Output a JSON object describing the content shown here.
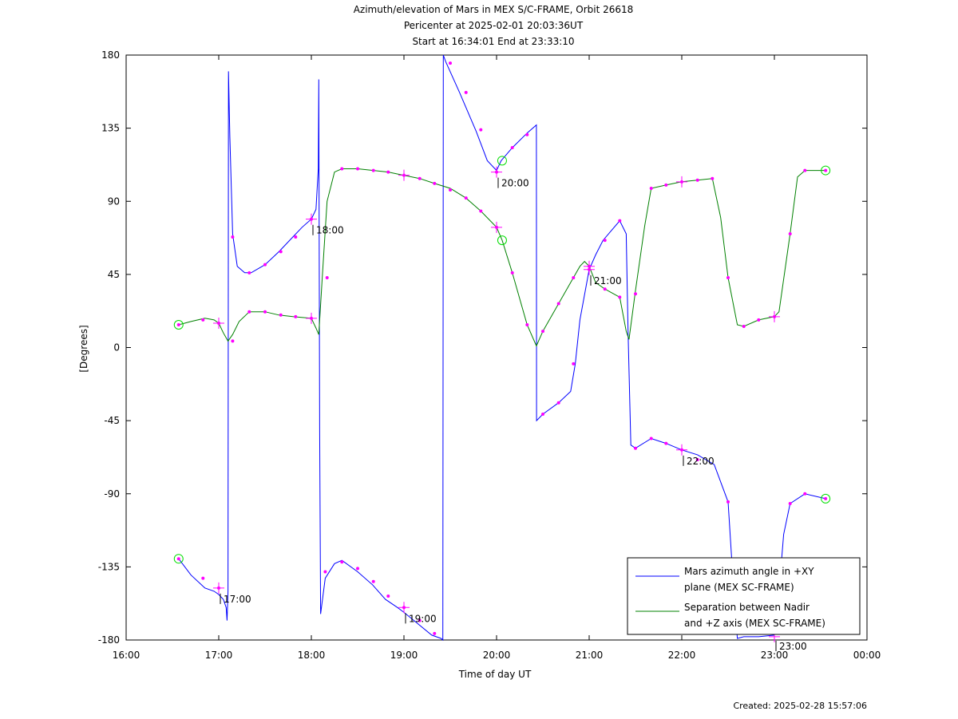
{
  "chart_data": {
    "type": "line",
    "title": "Azimuth/elevation of Mars in MEX S/C-FRAME,  Orbit 26618",
    "subtitle_lines": [
      "Pericenter at 2025-02-01 20:03:36UT",
      "Start at 16:34:01 End at 23:33:10"
    ],
    "xlabel": "Time of day UT",
    "ylabel": "[Degrees]",
    "xlim": [
      16,
      24
    ],
    "ylim": [
      -180,
      180
    ],
    "x_ticks": [
      16,
      17,
      18,
      19,
      20,
      21,
      22,
      23,
      24
    ],
    "x_tick_labels": [
      "16:00",
      "17:00",
      "18:00",
      "19:00",
      "20:00",
      "21:00",
      "22:00",
      "23:00",
      "00:00"
    ],
    "y_ticks": [
      180,
      135,
      90,
      45,
      0,
      -45,
      -90,
      -135,
      -180
    ],
    "y_tick_labels": [
      "180",
      "135",
      "90",
      "45",
      "0",
      "-45",
      "-90",
      "-135",
      "-180"
    ],
    "grid": false,
    "legend_position": "bottom-right",
    "series": [
      {
        "name": "Mars azimuth angle in +XY plane (MEX SC-FRAME)",
        "legend_lines": [
          "Mars azimuth angle in +XY",
          "plane (MEX SC-FRAME)"
        ],
        "color": "#0000ff",
        "x": [
          16.567,
          16.7,
          16.85,
          16.95,
          17.0,
          17.05,
          17.08,
          17.09,
          17.1,
          17.105,
          17.12,
          17.15,
          17.2,
          17.28,
          17.35,
          17.5,
          17.65,
          17.8,
          17.9,
          18.0,
          18.05,
          18.075,
          18.08,
          18.09,
          18.1,
          18.15,
          18.25,
          18.33,
          18.5,
          18.66,
          18.8,
          18.93,
          19.0,
          19.15,
          19.3,
          19.4,
          19.42,
          19.425,
          19.45,
          19.6,
          19.78,
          19.9,
          20.0,
          20.05,
          20.17,
          20.33,
          20.43,
          20.432,
          20.5,
          20.67,
          20.8,
          20.85,
          20.9,
          21.0,
          21.07,
          21.15,
          21.33,
          21.4,
          21.42,
          21.45,
          21.5,
          21.67,
          21.83,
          22.0,
          22.17,
          22.35,
          22.5,
          22.55,
          22.6,
          22.67,
          22.83,
          23.0,
          23.05,
          23.1,
          23.17,
          23.33,
          23.553
        ],
        "y": [
          -130,
          -140,
          -148,
          -150,
          -152,
          -155,
          -160,
          -168,
          -150,
          170,
          130,
          70,
          50,
          46,
          46,
          51,
          59,
          68,
          74,
          79,
          85,
          110,
          165,
          -50,
          -164,
          -142,
          -133,
          -131,
          -138,
          -146,
          -155,
          -160,
          -163,
          -170,
          -177,
          -179,
          -180,
          180,
          176,
          157,
          133,
          115,
          109,
          115,
          123,
          132,
          137,
          -45,
          -41,
          -34,
          -27,
          -10,
          17,
          48,
          57,
          66,
          78,
          70,
          10,
          -60,
          -62,
          -56,
          -59,
          -63,
          -66,
          -72,
          -95,
          -140,
          -179,
          -178,
          -178,
          -177,
          -150,
          -115,
          -96,
          -90,
          -93
        ]
      },
      {
        "name": "Separation between Nadir and +Z axis (MEX SC-FRAME)",
        "legend_lines": [
          "Separation between Nadir",
          "and +Z axis (MEX SC-FRAME)"
        ],
        "color": "#008000",
        "x": [
          16.567,
          16.7,
          16.85,
          16.95,
          17.0,
          17.05,
          17.1,
          17.15,
          17.22,
          17.33,
          17.5,
          17.65,
          17.8,
          18.0,
          18.05,
          18.08,
          18.12,
          18.17,
          18.25,
          18.33,
          18.5,
          18.67,
          18.83,
          19.0,
          19.17,
          19.33,
          19.5,
          19.67,
          19.83,
          20.0,
          20.06,
          20.17,
          20.33,
          20.43,
          20.5,
          20.67,
          20.83,
          20.9,
          20.95,
          21.0,
          21.07,
          21.17,
          21.33,
          21.4,
          21.43,
          21.5,
          21.6,
          21.67,
          21.83,
          22.0,
          22.17,
          22.33,
          22.42,
          22.5,
          22.6,
          22.67,
          22.83,
          23.0,
          23.05,
          23.17,
          23.25,
          23.33,
          23.553
        ],
        "y": [
          14,
          16,
          18,
          17,
          15,
          9,
          4,
          8,
          16,
          22,
          22,
          20,
          19,
          18,
          12,
          8,
          45,
          90,
          108,
          110,
          110,
          109,
          108,
          106,
          104,
          101,
          98,
          92,
          84,
          74,
          66,
          46,
          14,
          1,
          10,
          27,
          43,
          50,
          53,
          50,
          40,
          36,
          31,
          10,
          5,
          35,
          75,
          98,
          100,
          102,
          103,
          104,
          80,
          43,
          14,
          13,
          17,
          19,
          22,
          70,
          105,
          109,
          109
        ]
      }
    ],
    "markers": {
      "magenta_dots": {
        "color": "#ff00ff",
        "series_0": [
          [
            16.567,
            -130
          ],
          [
            16.83,
            -142
          ],
          [
            17.0,
            -148
          ],
          [
            17.15,
            68
          ],
          [
            17.33,
            46
          ],
          [
            17.5,
            51
          ],
          [
            17.67,
            59
          ],
          [
            17.83,
            68
          ],
          [
            18.0,
            79
          ],
          [
            18.15,
            -138
          ],
          [
            18.33,
            -132
          ],
          [
            18.5,
            -136
          ],
          [
            18.67,
            -144
          ],
          [
            18.83,
            -153
          ],
          [
            19.0,
            -160
          ],
          [
            19.17,
            -168
          ],
          [
            19.33,
            -176
          ],
          [
            19.5,
            175
          ],
          [
            19.67,
            157
          ],
          [
            19.83,
            134
          ],
          [
            20.0,
            108
          ],
          [
            20.17,
            123
          ],
          [
            20.33,
            131
          ],
          [
            20.5,
            -41
          ],
          [
            20.67,
            -34
          ],
          [
            20.83,
            -10
          ],
          [
            21.0,
            48
          ],
          [
            21.17,
            66
          ],
          [
            21.33,
            78
          ],
          [
            21.5,
            -62
          ],
          [
            21.67,
            -56
          ],
          [
            21.83,
            -59
          ],
          [
            22.0,
            -63
          ],
          [
            22.17,
            -69
          ],
          [
            22.5,
            -95
          ],
          [
            23.17,
            -96
          ],
          [
            23.33,
            -90
          ],
          [
            23.553,
            -93
          ]
        ],
        "series_1": [
          [
            16.567,
            14
          ],
          [
            16.83,
            17
          ],
          [
            17.0,
            15
          ],
          [
            17.15,
            4
          ],
          [
            17.33,
            22
          ],
          [
            17.5,
            22
          ],
          [
            17.67,
            20
          ],
          [
            17.83,
            19
          ],
          [
            18.0,
            18
          ],
          [
            18.17,
            43
          ],
          [
            18.33,
            110
          ],
          [
            18.5,
            110
          ],
          [
            18.67,
            109
          ],
          [
            18.83,
            108
          ],
          [
            19.0,
            106
          ],
          [
            19.17,
            104
          ],
          [
            19.33,
            101
          ],
          [
            19.5,
            97
          ],
          [
            19.67,
            92
          ],
          [
            19.83,
            84
          ],
          [
            20.0,
            74
          ],
          [
            20.17,
            46
          ],
          [
            20.33,
            14
          ],
          [
            20.5,
            10
          ],
          [
            20.67,
            27
          ],
          [
            20.83,
            43
          ],
          [
            21.0,
            50
          ],
          [
            21.17,
            36
          ],
          [
            21.33,
            31
          ],
          [
            21.5,
            33
          ],
          [
            21.67,
            98
          ],
          [
            21.83,
            100
          ],
          [
            22.0,
            102
          ],
          [
            22.17,
            103
          ],
          [
            22.33,
            104
          ],
          [
            22.5,
            43
          ],
          [
            22.67,
            13
          ],
          [
            22.83,
            17
          ],
          [
            23.0,
            19
          ],
          [
            23.17,
            70
          ],
          [
            23.33,
            109
          ],
          [
            23.553,
            109
          ]
        ]
      },
      "hour_crosses": {
        "color": "#ff00ff",
        "points": [
          [
            17.0,
            -148
          ],
          [
            17.0,
            15
          ],
          [
            18.0,
            79
          ],
          [
            18.0,
            18
          ],
          [
            19.0,
            -160
          ],
          [
            19.0,
            106
          ],
          [
            20.0,
            108
          ],
          [
            20.0,
            74
          ],
          [
            21.0,
            50
          ],
          [
            21.0,
            48
          ],
          [
            22.0,
            -63
          ],
          [
            22.0,
            102
          ],
          [
            23.0,
            -178
          ],
          [
            23.0,
            19
          ]
        ]
      },
      "green_circles": {
        "color": "#00dd00",
        "points": [
          [
            16.567,
            14
          ],
          [
            16.567,
            -130
          ],
          [
            20.06,
            115
          ],
          [
            20.06,
            66
          ],
          [
            23.553,
            109
          ],
          [
            23.553,
            -93
          ]
        ]
      }
    },
    "annotations": [
      {
        "label": "17:00",
        "x": 17.0,
        "y": -150
      },
      {
        "label": "18:00",
        "x": 18.0,
        "y": 77
      },
      {
        "label": "19:00",
        "x": 19.0,
        "y": -162
      },
      {
        "label": "20:00",
        "x": 20.0,
        "y": 106
      },
      {
        "label": "21:00",
        "x": 21.0,
        "y": 46
      },
      {
        "label": "22:00",
        "x": 22.0,
        "y": -65
      },
      {
        "label": "23:00",
        "x": 23.0,
        "y": -179
      }
    ],
    "created": "Created: 2025-02-28 15:57:06"
  }
}
